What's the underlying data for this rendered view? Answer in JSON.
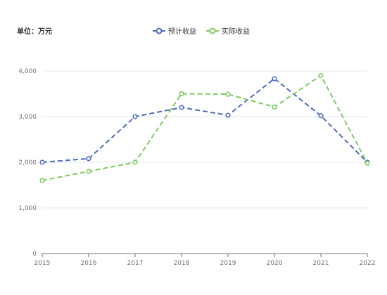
{
  "unit_label": "单位：万元",
  "colors": {
    "predicted": "#4e6bbf",
    "actual": "#7ecb61",
    "grid": "#e0e6f1",
    "axis": "#6e7079"
  },
  "chart_data": {
    "type": "line",
    "x": [
      "2015",
      "2016",
      "2017",
      "2018",
      "2019",
      "2020",
      "2021",
      "2022"
    ],
    "series": [
      {
        "name": "预计收益",
        "values": [
          2000,
          2080,
          3000,
          3200,
          3030,
          3830,
          3020,
          2000
        ],
        "line_style": "dashed"
      },
      {
        "name": "实际收益",
        "values": [
          1600,
          1800,
          2000,
          3500,
          3490,
          3210,
          3900,
          1980
        ],
        "line_style": "dashed"
      }
    ],
    "yticks": [
      "0",
      "1,000",
      "2,000",
      "3,000",
      "4,000"
    ],
    "ylim": [
      0,
      4000
    ],
    "grid": true,
    "legend_position": "top-center"
  }
}
